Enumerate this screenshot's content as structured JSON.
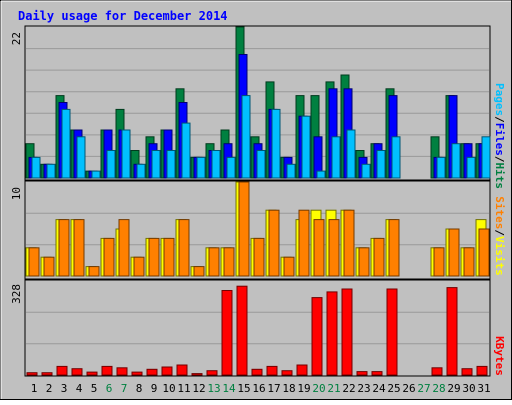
{
  "chart_data": {
    "type": "bar",
    "title": "Daily usage for December 2014",
    "categories": [
      "1",
      "2",
      "3",
      "4",
      "5",
      "6",
      "7",
      "8",
      "9",
      "10",
      "11",
      "12",
      "13",
      "14",
      "15",
      "16",
      "17",
      "18",
      "19",
      "20",
      "21",
      "22",
      "23",
      "24",
      "25",
      "26",
      "27",
      "28",
      "29",
      "30",
      "31"
    ],
    "weekend_days": [
      6,
      7,
      13,
      14,
      20,
      21,
      27,
      28
    ],
    "panels": [
      {
        "id": "hits",
        "axis_max_label": "22",
        "ylim": [
          0,
          22
        ],
        "legend": [
          "Pages",
          "Files",
          "Hits"
        ],
        "series": [
          {
            "name": "Hits",
            "color": "#008040",
            "values": [
              5,
              2,
              12,
              7,
              1,
              7,
              10,
              4,
              6,
              7,
              13,
              3,
              5,
              7,
              22,
              6,
              14,
              3,
              12,
              12,
              14,
              15,
              4,
              5,
              13,
              0,
              0,
              6,
              12,
              5,
              5
            ]
          },
          {
            "name": "Files",
            "color": "#0000FF",
            "values": [
              3,
              2,
              11,
              7,
              1,
              7,
              7,
              2,
              5,
              7,
              11,
              3,
              4,
              5,
              18,
              5,
              10,
              3,
              9,
              6,
              13,
              13,
              3,
              5,
              12,
              0,
              0,
              3,
              12,
              5,
              5
            ]
          },
          {
            "name": "Pages",
            "color": "#00C0FF",
            "values": [
              3,
              2,
              10,
              6,
              1,
              4,
              7,
              2,
              4,
              4,
              8,
              3,
              4,
              3,
              12,
              4,
              10,
              2,
              9,
              1,
              6,
              7,
              2,
              4,
              6,
              0,
              0,
              3,
              5,
              3,
              6
            ]
          }
        ]
      },
      {
        "id": "visits",
        "axis_max_label": "10",
        "ylim": [
          0,
          10
        ],
        "legend": [
          "Sites",
          "Visits"
        ],
        "series": [
          {
            "name": "Visits",
            "color": "#FFFF00",
            "values": [
              3,
              2,
              6,
              6,
              1,
              4,
              5,
              2,
              4,
              4,
              6,
              1,
              3,
              3,
              10,
              4,
              7,
              2,
              6,
              7,
              7,
              7,
              3,
              4,
              6,
              0,
              0,
              3,
              5,
              3,
              6
            ]
          },
          {
            "name": "Sites",
            "color": "#FF8000",
            "values": [
              3,
              2,
              6,
              6,
              1,
              4,
              6,
              2,
              4,
              4,
              6,
              1,
              3,
              3,
              10,
              4,
              7,
              2,
              7,
              6,
              6,
              7,
              3,
              4,
              6,
              0,
              0,
              3,
              5,
              3,
              5
            ]
          }
        ]
      },
      {
        "id": "kbytes",
        "axis_max_label": "328",
        "ylim": [
          0,
          328
        ],
        "legend": [
          "KBytes"
        ],
        "series": [
          {
            "name": "KBytes",
            "color": "#FF0000",
            "values": [
              8,
              8,
              30,
              22,
              10,
              30,
              25,
              10,
              20,
              28,
              35,
              5,
              15,
              295,
              310,
              20,
              30,
              15,
              35,
              270,
              290,
              300,
              12,
              12,
              300,
              0,
              0,
              25,
              305,
              22,
              30
            ]
          }
        ]
      }
    ]
  }
}
